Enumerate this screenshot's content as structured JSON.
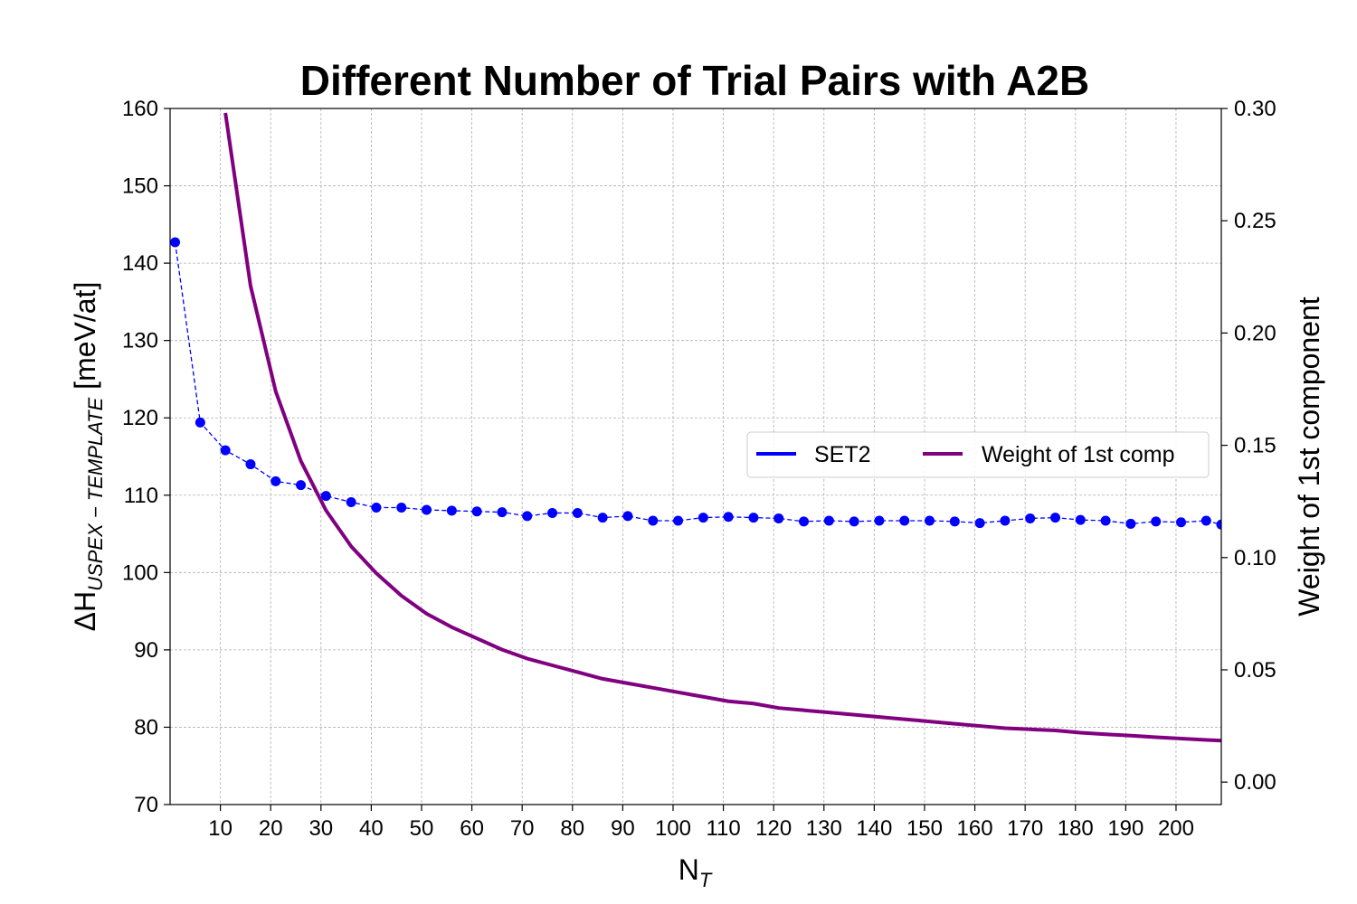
{
  "chart_data": {
    "type": "line",
    "title": "Different Number of Trial Pairs with A2B",
    "xlabel_main": "N",
    "xlabel_sub": "T",
    "ylabel_left_main": "ΔH",
    "ylabel_left_sub": "USPEX − TEMPLATE",
    "ylabel_left_unit": "[meV/at]",
    "ylabel_right": "Weight of 1st component",
    "xlim": [
      0,
      209
    ],
    "ylim_left": [
      70,
      160
    ],
    "ylim_right": [
      -0.01,
      0.3
    ],
    "x_ticks": [
      10,
      20,
      30,
      40,
      50,
      60,
      70,
      80,
      90,
      100,
      110,
      120,
      130,
      140,
      150,
      160,
      170,
      180,
      190,
      200
    ],
    "y_left_ticks": [
      70,
      80,
      90,
      100,
      110,
      120,
      130,
      140,
      150,
      160
    ],
    "y_right_ticks": [
      "0.00",
      "0.05",
      "0.10",
      "0.15",
      "0.20",
      "0.25",
      "0.30"
    ],
    "grid": true,
    "legend_position": "center-right",
    "series": [
      {
        "name": "SET2",
        "axis": "left",
        "color": "#0000ff",
        "style": "dashed-with-markers",
        "x": [
          1,
          6,
          11,
          16,
          21,
          26,
          31,
          36,
          41,
          46,
          51,
          56,
          61,
          66,
          71,
          76,
          81,
          86,
          91,
          96,
          101,
          106,
          111,
          116,
          121,
          126,
          131,
          136,
          141,
          146,
          151,
          156,
          161,
          166,
          171,
          176,
          181,
          186,
          191,
          196,
          201,
          206,
          209
        ],
        "values": [
          142.7,
          119.4,
          115.8,
          114.0,
          111.8,
          111.3,
          109.9,
          109.1,
          108.4,
          108.4,
          108.1,
          108.0,
          107.9,
          107.8,
          107.3,
          107.7,
          107.7,
          107.1,
          107.3,
          106.7,
          106.7,
          107.1,
          107.2,
          107.1,
          107.0,
          106.6,
          106.7,
          106.6,
          106.7,
          106.7,
          106.7,
          106.6,
          106.4,
          106.7,
          107.0,
          107.1,
          106.8,
          106.7,
          106.3,
          106.6,
          106.5,
          106.7,
          106.2
        ]
      },
      {
        "name": "Weight of 1st comp",
        "axis": "right",
        "color": "#800080",
        "style": "solid",
        "x": [
          11,
          16,
          21,
          26,
          31,
          36,
          41,
          46,
          51,
          56,
          61,
          66,
          71,
          76,
          81,
          86,
          91,
          96,
          101,
          106,
          111,
          116,
          121,
          126,
          131,
          136,
          141,
          146,
          151,
          156,
          161,
          166,
          171,
          176,
          181,
          186,
          191,
          196,
          201,
          206,
          209
        ],
        "values": [
          0.298,
          0.221,
          0.174,
          0.143,
          0.121,
          0.105,
          0.093,
          0.083,
          0.075,
          0.069,
          0.064,
          0.059,
          0.055,
          0.052,
          0.049,
          0.046,
          0.044,
          0.042,
          0.04,
          0.038,
          0.036,
          0.035,
          0.033,
          0.032,
          0.031,
          0.03,
          0.029,
          0.028,
          0.027,
          0.026,
          0.025,
          0.024,
          0.0235,
          0.023,
          0.022,
          0.0213,
          0.0207,
          0.02,
          0.0194,
          0.0188,
          0.0185
        ]
      }
    ]
  }
}
